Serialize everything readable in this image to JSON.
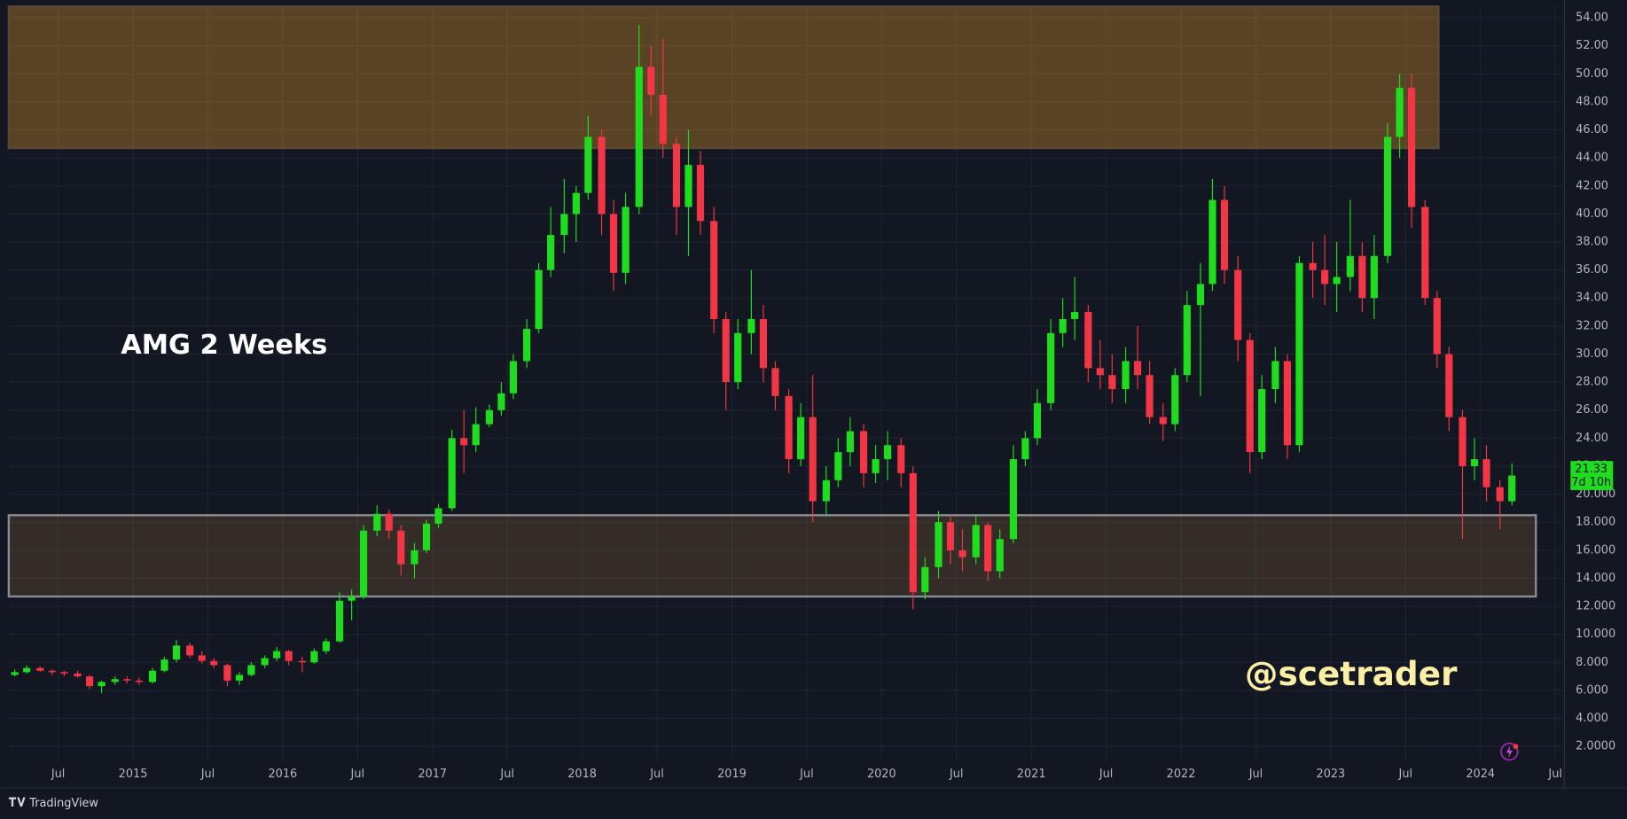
{
  "chart_data": {
    "type": "candlestick",
    "title": "AMG 2 Weeks",
    "watermark": "@scetrader",
    "brand": "TradingView",
    "countdown": "7d 10h",
    "last_price": 21.33,
    "up_color": "#1fdc1f",
    "down_color": "#f23645",
    "grid": true,
    "xlim": [
      2014.17,
      2024.56
    ],
    "ylim": [
      -0.96,
      54.9
    ],
    "xticks": [
      {
        "value": 2014.5,
        "label": "Jul"
      },
      2015,
      {
        "value": 2015.5,
        "label": "Jul"
      },
      2016,
      {
        "value": 2016.5,
        "label": "Jul"
      },
      2017,
      {
        "value": 2017.5,
        "label": "Jul"
      },
      2018,
      {
        "value": 2018.5,
        "label": "Jul"
      },
      2019,
      {
        "value": 2019.5,
        "label": "Jul"
      },
      2020,
      {
        "value": 2020.5,
        "label": "Jul"
      },
      2021,
      {
        "value": 2021.5,
        "label": "Jul"
      },
      2022,
      {
        "value": 2022.5,
        "label": "Jul"
      },
      2023,
      {
        "value": 2023.5,
        "label": "Jul"
      },
      2024,
      {
        "value": 2024.5,
        "label": "Jul"
      }
    ],
    "yticks": [
      {
        "value": 2,
        "label": "2.0000"
      },
      {
        "value": 4,
        "label": "4.000"
      },
      {
        "value": 6,
        "label": "6.000"
      },
      {
        "value": 8,
        "label": "8.000"
      },
      {
        "value": 10,
        "label": "10.000"
      },
      {
        "value": 12,
        "label": "12.000"
      },
      {
        "value": 14,
        "label": "14.000"
      },
      {
        "value": 16,
        "label": "16.000"
      },
      {
        "value": 18,
        "label": "18.000"
      },
      {
        "value": 20,
        "label": "20.000"
      },
      {
        "value": 22,
        "label": "22.00"
      },
      {
        "value": 24,
        "label": "24.00"
      },
      {
        "value": 26,
        "label": "26.00"
      },
      {
        "value": 28,
        "label": "28.00"
      },
      {
        "value": 30,
        "label": "30.00"
      },
      {
        "value": 32,
        "label": "32.00"
      },
      {
        "value": 34,
        "label": "34.00"
      },
      {
        "value": 36,
        "label": "36.00"
      },
      {
        "value": 38,
        "label": "38.00"
      },
      {
        "value": 40,
        "label": "40.00"
      },
      {
        "value": 42,
        "label": "42.00"
      },
      {
        "value": 44,
        "label": "44.00"
      },
      {
        "value": 46,
        "label": "46.00"
      },
      {
        "value": 48,
        "label": "48.00"
      },
      {
        "value": 50,
        "label": "50.00"
      },
      {
        "value": 52,
        "label": "52.00"
      },
      {
        "value": 54,
        "label": "54.00"
      }
    ],
    "zones": [
      {
        "x": [
          2014.17,
          2023.72
        ],
        "low": 44.7,
        "high": 54.8,
        "color": "#f2a22a",
        "opacity": 0.32,
        "border": "#5a4a35"
      },
      {
        "x": [
          2014.17,
          2024.37
        ],
        "low": 12.7,
        "high": 18.5,
        "color": "#a87a3c",
        "opacity": 0.22,
        "border": "#8a8d96"
      }
    ],
    "x": [
      2014.21,
      2014.29,
      2014.38,
      2014.46,
      2014.54,
      2014.63,
      2014.71,
      2014.79,
      2014.88,
      2014.96,
      2015.04,
      2015.13,
      2015.21,
      2015.29,
      2015.38,
      2015.46,
      2015.54,
      2015.63,
      2015.71,
      2015.79,
      2015.88,
      2015.96,
      2016.04,
      2016.13,
      2016.21,
      2016.29,
      2016.38,
      2016.46,
      2016.54,
      2016.63,
      2016.71,
      2016.79,
      2016.88,
      2016.96,
      2017.04,
      2017.13,
      2017.21,
      2017.29,
      2017.38,
      2017.46,
      2017.54,
      2017.63,
      2017.71,
      2017.79,
      2017.88,
      2017.96,
      2018.04,
      2018.13,
      2018.21,
      2018.29,
      2018.38,
      2018.46,
      2018.54,
      2018.63,
      2018.71,
      2018.79,
      2018.88,
      2018.96,
      2019.04,
      2019.13,
      2019.21,
      2019.29,
      2019.38,
      2019.46,
      2019.54,
      2019.63,
      2019.71,
      2019.79,
      2019.88,
      2019.96,
      2020.04,
      2020.13,
      2020.21,
      2020.29,
      2020.38,
      2020.46,
      2020.54,
      2020.63,
      2020.71,
      2020.79,
      2020.88,
      2020.96,
      2021.04,
      2021.13,
      2021.21,
      2021.29,
      2021.38,
      2021.46,
      2021.54,
      2021.63,
      2021.71,
      2021.79,
      2021.88,
      2021.96,
      2022.04,
      2022.13,
      2022.21,
      2022.29,
      2022.38,
      2022.46,
      2022.54,
      2022.63,
      2022.71,
      2022.79,
      2022.88,
      2022.96,
      2023.04,
      2023.13,
      2023.21,
      2023.29,
      2023.38,
      2023.46,
      2023.54,
      2023.63,
      2023.71,
      2023.79,
      2023.88,
      2023.96,
      2024.04,
      2024.13,
      2024.21
    ],
    "ohlc": [
      [
        7.1,
        7.5,
        7.0,
        7.3
      ],
      [
        7.3,
        7.8,
        7.2,
        7.6
      ],
      [
        7.6,
        7.7,
        7.3,
        7.4
      ],
      [
        7.4,
        7.5,
        7.1,
        7.3
      ],
      [
        7.3,
        7.4,
        7.0,
        7.2
      ],
      [
        7.2,
        7.4,
        6.9,
        7.0
      ],
      [
        7.0,
        7.1,
        6.1,
        6.3
      ],
      [
        6.3,
        6.7,
        5.8,
        6.6
      ],
      [
        6.6,
        7.0,
        6.4,
        6.8
      ],
      [
        6.8,
        7.0,
        6.5,
        6.7
      ],
      [
        6.7,
        6.9,
        6.4,
        6.6
      ],
      [
        6.6,
        7.6,
        6.5,
        7.4
      ],
      [
        7.4,
        8.4,
        7.3,
        8.2
      ],
      [
        8.2,
        9.6,
        8.0,
        9.2
      ],
      [
        9.2,
        9.4,
        8.3,
        8.5
      ],
      [
        8.5,
        8.8,
        7.9,
        8.1
      ],
      [
        8.1,
        8.3,
        7.6,
        7.8
      ],
      [
        7.8,
        7.9,
        6.3,
        6.7
      ],
      [
        6.7,
        7.3,
        6.4,
        7.1
      ],
      [
        7.1,
        8.0,
        7.0,
        7.8
      ],
      [
        7.8,
        8.5,
        7.6,
        8.3
      ],
      [
        8.3,
        9.1,
        8.1,
        8.8
      ],
      [
        8.8,
        8.9,
        7.8,
        8.1
      ],
      [
        8.1,
        8.4,
        7.3,
        8.0
      ],
      [
        8.0,
        9.0,
        7.9,
        8.8
      ],
      [
        8.8,
        9.7,
        8.6,
        9.5
      ],
      [
        9.5,
        13.0,
        9.4,
        12.4
      ],
      [
        12.4,
        13.2,
        11.0,
        12.7
      ],
      [
        12.7,
        17.8,
        12.5,
        17.4
      ],
      [
        17.4,
        19.2,
        17.0,
        18.6
      ],
      [
        18.6,
        18.9,
        16.8,
        17.4
      ],
      [
        17.4,
        17.8,
        14.2,
        15.0
      ],
      [
        15.0,
        16.5,
        14.0,
        16.0
      ],
      [
        16.0,
        18.2,
        15.8,
        17.9
      ],
      [
        17.9,
        19.3,
        17.6,
        19.0
      ],
      [
        19.0,
        24.6,
        18.8,
        24.0
      ],
      [
        24.0,
        26.0,
        21.5,
        23.5
      ],
      [
        23.5,
        26.2,
        23.0,
        25.0
      ],
      [
        25.0,
        26.4,
        24.8,
        26.0
      ],
      [
        26.0,
        28.0,
        25.6,
        27.2
      ],
      [
        27.2,
        30.0,
        26.8,
        29.5
      ],
      [
        29.5,
        32.5,
        29.0,
        31.8
      ],
      [
        31.8,
        36.5,
        31.5,
        36.0
      ],
      [
        36.0,
        40.5,
        35.5,
        38.5
      ],
      [
        38.5,
        42.5,
        37.2,
        40.0
      ],
      [
        40.0,
        42.0,
        38.0,
        41.5
      ],
      [
        41.5,
        47.0,
        41.0,
        45.5
      ],
      [
        45.5,
        46.0,
        38.5,
        40.0
      ],
      [
        40.0,
        41.0,
        34.5,
        35.8
      ],
      [
        35.8,
        41.5,
        35.0,
        40.5
      ],
      [
        40.5,
        53.5,
        40.0,
        50.5
      ],
      [
        50.5,
        52.0,
        47.0,
        48.5
      ],
      [
        48.5,
        52.5,
        44.0,
        45.0
      ],
      [
        45.0,
        45.5,
        38.5,
        40.5
      ],
      [
        40.5,
        46.0,
        37.0,
        43.5
      ],
      [
        43.5,
        44.5,
        38.5,
        39.5
      ],
      [
        39.5,
        40.5,
        31.5,
        32.5
      ],
      [
        32.5,
        33.0,
        26.0,
        28.0
      ],
      [
        28.0,
        32.5,
        27.5,
        31.5
      ],
      [
        31.5,
        36.0,
        30.0,
        32.5
      ],
      [
        32.5,
        33.5,
        28.0,
        29.0
      ],
      [
        29.0,
        29.5,
        26.0,
        27.0
      ],
      [
        27.0,
        27.5,
        21.5,
        22.5
      ],
      [
        22.5,
        26.5,
        22.0,
        25.5
      ],
      [
        25.5,
        28.5,
        18.0,
        19.5
      ],
      [
        19.5,
        22.0,
        18.5,
        21.0
      ],
      [
        21.0,
        24.0,
        20.5,
        23.0
      ],
      [
        23.0,
        25.5,
        22.0,
        24.5
      ],
      [
        24.5,
        25.0,
        20.5,
        21.5
      ],
      [
        21.5,
        23.5,
        20.8,
        22.5
      ],
      [
        22.5,
        24.5,
        21.0,
        23.5
      ],
      [
        23.5,
        24.0,
        20.5,
        21.5
      ],
      [
        21.5,
        22.0,
        11.8,
        13.0
      ],
      [
        13.0,
        15.5,
        12.5,
        14.8
      ],
      [
        14.8,
        18.8,
        14.0,
        18.0
      ],
      [
        18.0,
        18.5,
        15.0,
        16.0
      ],
      [
        16.0,
        17.5,
        14.5,
        15.5
      ],
      [
        15.5,
        18.5,
        15.0,
        17.8
      ],
      [
        17.8,
        18.0,
        13.8,
        14.5
      ],
      [
        14.5,
        17.5,
        14.0,
        16.8
      ],
      [
        16.8,
        23.5,
        16.5,
        22.5
      ],
      [
        22.5,
        24.5,
        22.0,
        24.0
      ],
      [
        24.0,
        27.5,
        23.5,
        26.5
      ],
      [
        26.5,
        32.5,
        26.0,
        31.5
      ],
      [
        31.5,
        34.0,
        30.5,
        32.5
      ],
      [
        32.5,
        35.5,
        31.0,
        33.0
      ],
      [
        33.0,
        33.5,
        28.0,
        29.0
      ],
      [
        29.0,
        31.0,
        27.5,
        28.5
      ],
      [
        28.5,
        30.0,
        26.5,
        27.5
      ],
      [
        27.5,
        30.5,
        26.5,
        29.5
      ],
      [
        29.5,
        32.0,
        27.5,
        28.5
      ],
      [
        28.5,
        29.5,
        25.0,
        25.5
      ],
      [
        25.5,
        26.5,
        23.8,
        25.0
      ],
      [
        25.0,
        29.0,
        24.5,
        28.5
      ],
      [
        28.5,
        34.5,
        28.0,
        33.5
      ],
      [
        33.5,
        36.5,
        27.0,
        35.0
      ],
      [
        35.0,
        42.5,
        34.5,
        41.0
      ],
      [
        41.0,
        42.0,
        35.0,
        36.0
      ],
      [
        36.0,
        37.0,
        29.5,
        31.0
      ],
      [
        31.0,
        31.5,
        21.5,
        23.0
      ],
      [
        23.0,
        28.5,
        22.5,
        27.5
      ],
      [
        27.5,
        30.5,
        26.5,
        29.5
      ],
      [
        29.5,
        30.0,
        22.5,
        23.5
      ],
      [
        23.5,
        37.0,
        23.0,
        36.5
      ],
      [
        36.5,
        38.0,
        34.0,
        36.0
      ],
      [
        36.0,
        38.5,
        33.5,
        35.0
      ],
      [
        35.0,
        38.0,
        33.0,
        35.5
      ],
      [
        35.5,
        41.0,
        34.5,
        37.0
      ],
      [
        37.0,
        38.0,
        33.0,
        34.0
      ],
      [
        34.0,
        38.5,
        32.5,
        37.0
      ],
      [
        37.0,
        46.5,
        36.5,
        45.5
      ],
      [
        45.5,
        50.0,
        44.0,
        49.0
      ],
      [
        49.0,
        50.0,
        39.0,
        40.5
      ],
      [
        40.5,
        41.0,
        33.5,
        34.0
      ],
      [
        34.0,
        34.5,
        29.0,
        30.0
      ],
      [
        30.0,
        30.5,
        24.5,
        25.5
      ],
      [
        25.5,
        26.0,
        16.8,
        22.0
      ],
      [
        22.0,
        24.0,
        21.0,
        22.5
      ],
      [
        22.5,
        23.5,
        19.5,
        20.5
      ],
      [
        20.5,
        21.0,
        17.5,
        19.5
      ],
      [
        19.5,
        22.2,
        19.2,
        21.33
      ]
    ]
  }
}
